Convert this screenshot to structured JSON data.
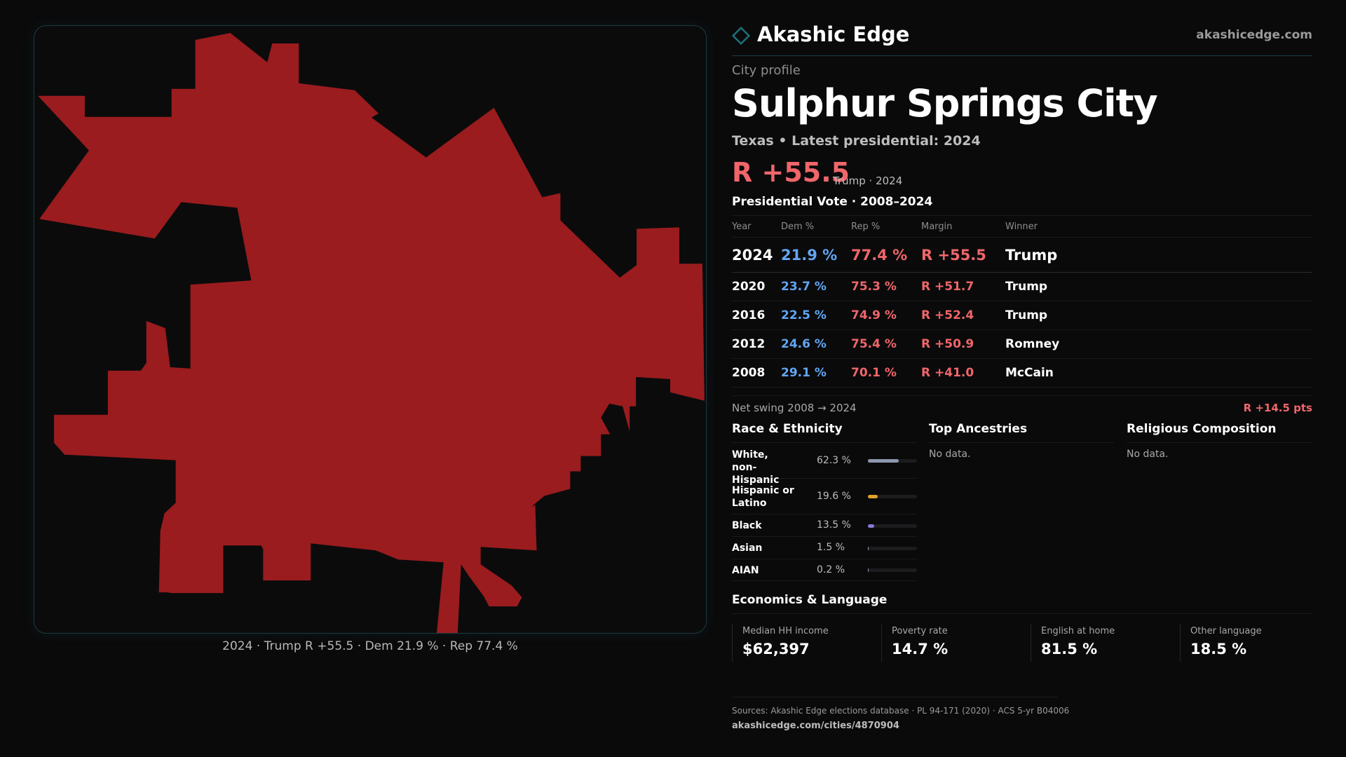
{
  "brand": {
    "name": "Akashic Edge",
    "domain": "akashicedge.com",
    "accent": "#1d6f7a"
  },
  "profile": {
    "kicker": "City profile",
    "name": "Sulphur Springs City",
    "subtitle": "Texas • Latest presidential: 2024",
    "margin": "R +55.5",
    "margin_note": "Trump · 2024"
  },
  "map": {
    "fill_color": "#9a1c1e",
    "caption": "2024 · Trump R +55.5 · Dem 21.9 % · Rep 77.4 %"
  },
  "presidential": {
    "title": "Presidential Vote · 2008–2024",
    "columns": [
      "Year",
      "Dem %",
      "Rep %",
      "Margin",
      "Winner"
    ],
    "rows": [
      {
        "year": "2024",
        "dem": "21.9 %",
        "rep": "77.4 %",
        "margin": "R +55.5",
        "winner": "Trump"
      },
      {
        "year": "2020",
        "dem": "23.7 %",
        "rep": "75.3 %",
        "margin": "R +51.7",
        "winner": "Trump"
      },
      {
        "year": "2016",
        "dem": "22.5 %",
        "rep": "74.9 %",
        "margin": "R +52.4",
        "winner": "Trump"
      },
      {
        "year": "2012",
        "dem": "24.6 %",
        "rep": "75.4 %",
        "margin": "R +50.9",
        "winner": "Romney"
      },
      {
        "year": "2008",
        "dem": "29.1 %",
        "rep": "70.1 %",
        "margin": "R +41.0",
        "winner": "McCain"
      }
    ],
    "swing_label": "Net swing 2008 → 2024",
    "swing_value": "R +14.5 pts"
  },
  "race": {
    "title": "Race & Ethnicity",
    "items": [
      {
        "label": "White, non-Hispanic",
        "pct": "62.3 %",
        "value": 62.3,
        "color": "#8d97ad"
      },
      {
        "label": "Hispanic or Latino",
        "pct": "19.6 %",
        "value": 19.6,
        "color": "#e0a12a"
      },
      {
        "label": "Black",
        "pct": "13.5 %",
        "value": 13.5,
        "color": "#8a7ad8"
      },
      {
        "label": "Asian",
        "pct": "1.5 %",
        "value": 1.5,
        "color": "#8d97ad"
      },
      {
        "label": "AIAN",
        "pct": "0.2 %",
        "value": 0.2,
        "color": "#8d97ad"
      }
    ]
  },
  "ancestries": {
    "title": "Top Ancestries",
    "empty": "No data."
  },
  "religion": {
    "title": "Religious Composition",
    "empty": "No data."
  },
  "economics": {
    "title": "Economics & Language",
    "stats": [
      {
        "label": "Median HH income",
        "value": "$62,397"
      },
      {
        "label": "Poverty rate",
        "value": "14.7 %"
      },
      {
        "label": "English at home",
        "value": "81.5 %"
      },
      {
        "label": "Other language",
        "value": "18.5 %"
      }
    ]
  },
  "footer": {
    "sources": "Sources: Akashic Edge elections database · PL 94-171 (2020) · ACS 5-yr B04006",
    "url": "akashicedge.com/cities/4870904"
  }
}
